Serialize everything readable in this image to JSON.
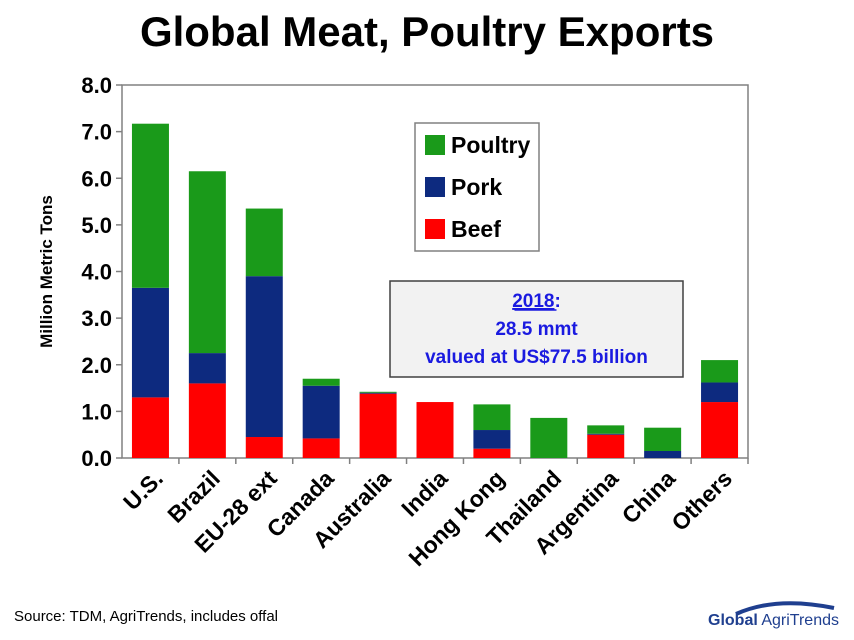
{
  "chart_data": {
    "type": "bar",
    "stacked": true,
    "title": "Global Meat, Poultry Exports",
    "ylabel": "Million Metric Tons",
    "ylim": [
      0,
      8
    ],
    "yticks": [
      "0.0",
      "1.0",
      "2.0",
      "3.0",
      "4.0",
      "5.0",
      "6.0",
      "7.0",
      "8.0"
    ],
    "categories": [
      "U.S.",
      "Brazil",
      "EU-28 ext",
      "Canada",
      "Australia",
      "India",
      "Hong Kong",
      "Thailand",
      "Argentina",
      "China",
      "Others"
    ],
    "series": [
      {
        "name": "Beef",
        "color": "#ff0000",
        "values": [
          1.3,
          1.6,
          0.45,
          0.42,
          1.38,
          1.2,
          0.2,
          0.0,
          0.5,
          0.0,
          1.2
        ]
      },
      {
        "name": "Pork",
        "color": "#0d2a7f",
        "values": [
          2.35,
          0.65,
          3.45,
          1.13,
          0.02,
          0.0,
          0.4,
          0.0,
          0.02,
          0.15,
          0.42
        ]
      },
      {
        "name": "Poultry",
        "color": "#1a9a1a",
        "values": [
          3.52,
          3.9,
          1.45,
          0.15,
          0.02,
          0.0,
          0.55,
          0.86,
          0.18,
          0.5,
          0.48
        ]
      }
    ],
    "legend_order": [
      "Poultry",
      "Pork",
      "Beef"
    ],
    "legend_position": "top-center",
    "grid": false,
    "annotation": {
      "year": "2018",
      "colon": ":",
      "line2": "28.5 mmt",
      "line3": "valued at US$77.5  billion"
    }
  },
  "footer": {
    "source": "Source:  TDM, AgriTrends, includes offal",
    "logo_bold": "Global",
    "logo_thin": " AgriTrends"
  }
}
